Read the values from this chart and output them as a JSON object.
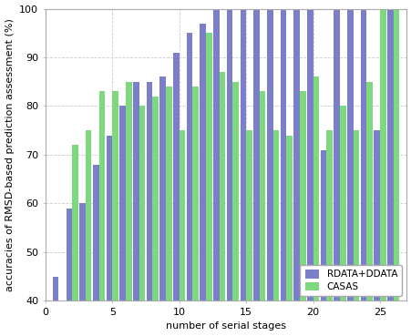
{
  "rdata_values": [
    45,
    59,
    60,
    68,
    74,
    80,
    85,
    85,
    86,
    91,
    95,
    97,
    100,
    100,
    100,
    100,
    100,
    100,
    100,
    100,
    71,
    100,
    100,
    100,
    75,
    100
  ],
  "casas_values": [
    40,
    72,
    75,
    83,
    83,
    85,
    80,
    82,
    84,
    75,
    84,
    95,
    87,
    85,
    75,
    83,
    75,
    74,
    83,
    86,
    75,
    80,
    75,
    85,
    100,
    100
  ],
  "x_positions": [
    1,
    2,
    3,
    4,
    5,
    6,
    7,
    8,
    9,
    10,
    11,
    12,
    13,
    14,
    15,
    16,
    17,
    18,
    19,
    20,
    21,
    22,
    23,
    24,
    25,
    26
  ],
  "bar_width": 0.45,
  "blue_color": "#7b7ec8",
  "green_color": "#7ed87e",
  "xlabel": "number of serial stages",
  "ylabel": "accuracies of RMSD-based prediction assessment (%)",
  "ylim": [
    40,
    100
  ],
  "xlim": [
    0,
    27
  ],
  "xticks": [
    0,
    5,
    10,
    15,
    20,
    25
  ],
  "yticks": [
    40,
    50,
    60,
    70,
    80,
    90,
    100
  ],
  "legend_labels": [
    "RDATA+DDATA",
    "CASAS"
  ],
  "grid_color": "#cccccc",
  "background_color": "#ffffff",
  "label_fontsize": 8,
  "tick_fontsize": 8
}
